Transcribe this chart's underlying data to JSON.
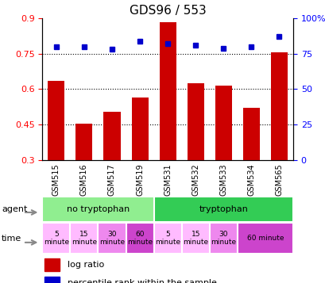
{
  "title": "GDS96 / 553",
  "samples": [
    "GSM515",
    "GSM516",
    "GSM517",
    "GSM519",
    "GSM531",
    "GSM532",
    "GSM533",
    "GSM534",
    "GSM565"
  ],
  "log_ratio": [
    0.635,
    0.455,
    0.505,
    0.565,
    0.885,
    0.625,
    0.615,
    0.52,
    0.755
  ],
  "percentile": [
    80,
    80,
    78,
    84,
    82,
    81,
    79,
    80,
    87
  ],
  "ylim_left": [
    0.3,
    0.9
  ],
  "ylim_right": [
    0,
    100
  ],
  "yticks_left": [
    0.3,
    0.45,
    0.6,
    0.75,
    0.9
  ],
  "yticks_right": [
    0,
    25,
    50,
    75,
    100
  ],
  "bar_color": "#cc0000",
  "dot_color": "#0000cc",
  "agent_no_tryp_color": "#90ee90",
  "agent_tryp_color": "#33cc55",
  "time_slots": [
    [
      0,
      1,
      "#ffbbff",
      "5\nminute"
    ],
    [
      1,
      1,
      "#ffbbff",
      "15\nminute"
    ],
    [
      2,
      1,
      "#ee88ee",
      "30\nminute"
    ],
    [
      3,
      1,
      "#cc44cc",
      "60\nminute"
    ],
    [
      4,
      1,
      "#ffbbff",
      "5\nminute"
    ],
    [
      5,
      1,
      "#ffbbff",
      "15\nminute"
    ],
    [
      6,
      1,
      "#ee88ee",
      "30\nminute"
    ],
    [
      7,
      2,
      "#cc44cc",
      "60 minute"
    ]
  ],
  "grid_dotted_values": [
    0.45,
    0.6,
    0.75
  ],
  "bar_width": 0.6,
  "xticklabel_bg": "#cccccc"
}
